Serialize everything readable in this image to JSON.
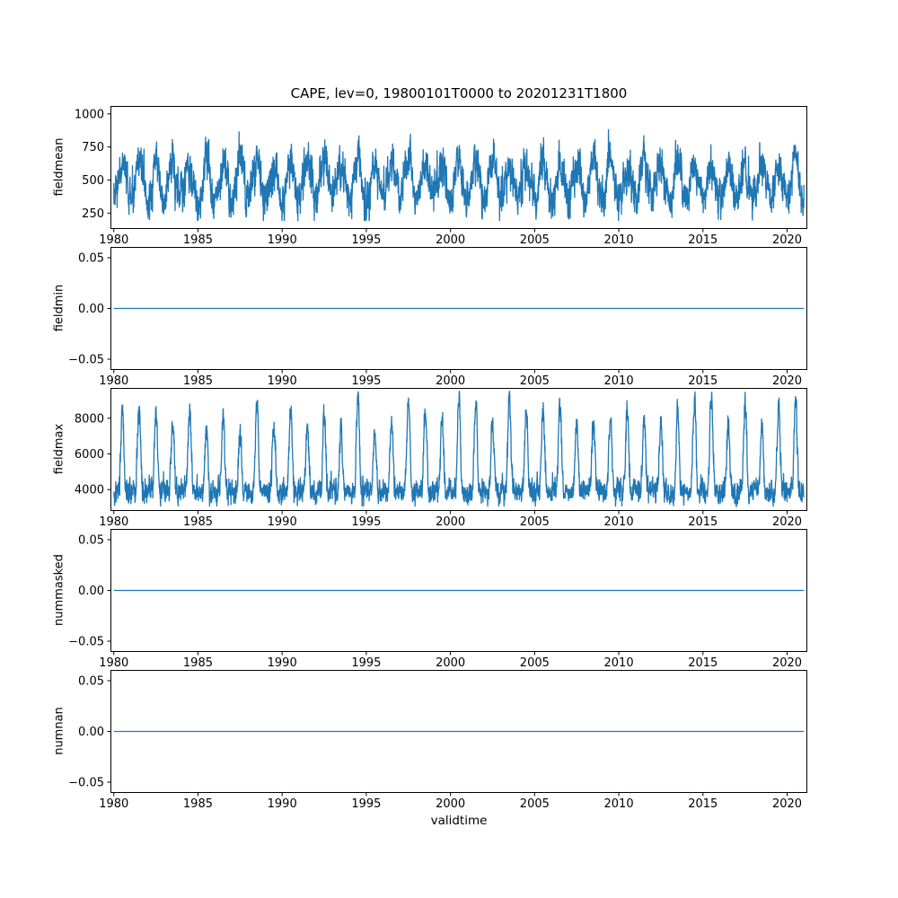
{
  "figure": {
    "title": "CAPE, lev=0, 19800101T0000 to 20201231T1800",
    "xlabel": "validtime",
    "line_color": "#1f77b4",
    "spine_color": "#000000",
    "background": "#ffffff"
  },
  "chart_data": [
    {
      "type": "line",
      "ylabel": "fieldmean",
      "summary": "Dense 6-hourly series with an annual seasonal cycle plus noise; mean about 500, typical range 250-800, occasional peaks near 950, minima near 200.",
      "x_range": [
        1980,
        2021
      ],
      "xlim": [
        1979.8,
        2021.2
      ],
      "ylim": [
        130,
        1060
      ],
      "yticks": [
        250,
        500,
        750,
        1000
      ],
      "ytick_labels": [
        "250",
        "500",
        "750",
        "1000"
      ],
      "xticks": [
        1980,
        1985,
        1990,
        1995,
        2000,
        2005,
        2010,
        2015,
        2020
      ],
      "xtick_labels": [
        "1980",
        "1985",
        "1990",
        "1995",
        "2000",
        "2005",
        "2010",
        "2015",
        "2020"
      ],
      "series": {
        "name": "fieldmean",
        "kind": "seasonal",
        "mean": 495,
        "amp": 150,
        "phase": 0.25,
        "year_min": 0.75,
        "year_max": 1.2,
        "ar": 0.55,
        "noise_sd": 55,
        "jitter": 40,
        "clip_min": 190,
        "clip_max": 985,
        "points": 4000,
        "seed": 7
      }
    },
    {
      "type": "line",
      "ylabel": "fieldmin",
      "summary": "Constant zero line for the whole period.",
      "x_range": [
        1980,
        2021
      ],
      "xlim": [
        1979.8,
        2021.2
      ],
      "ylim": [
        -0.0606,
        0.0606
      ],
      "yticks": [
        0.05,
        0,
        -0.05
      ],
      "ytick_labels": [
        "0.05",
        "0.00",
        "−0.05"
      ],
      "xticks": [
        1980,
        1985,
        1990,
        1995,
        2000,
        2005,
        2010,
        2015,
        2020
      ],
      "xtick_labels": [
        "1980",
        "1985",
        "1990",
        "1995",
        "2000",
        "2005",
        "2010",
        "2015",
        "2020"
      ],
      "series": {
        "name": "fieldmin",
        "kind": "constant",
        "value": 0
      }
    },
    {
      "type": "line",
      "ylabel": "fieldmax",
      "summary": "Dense series with noisy baseline near 3500-4500 and sharp annual peaks reaching 6500-9400.",
      "x_range": [
        1980,
        2021
      ],
      "xlim": [
        1979.8,
        2021.2
      ],
      "ylim": [
        2800,
        9700
      ],
      "yticks": [
        4000,
        6000,
        8000
      ],
      "ytick_labels": [
        "4000",
        "6000",
        "8000"
      ],
      "xticks": [
        1980,
        1985,
        1990,
        1995,
        2000,
        2005,
        2010,
        2015,
        2020
      ],
      "xtick_labels": [
        "1980",
        "1985",
        "1990",
        "1995",
        "2000",
        "2005",
        "2010",
        "2015",
        "2020"
      ],
      "series": {
        "name": "fieldmax",
        "kind": "seasonal_peaks",
        "base": 3900,
        "peak_amp": 4800,
        "peak_power": 3,
        "phase": 0.25,
        "year_min": 0.7,
        "year_max": 1.15,
        "ar": 0.5,
        "noise_sd": 260,
        "jitter": 180,
        "clip_min": 3050,
        "clip_max": 9500,
        "points": 4000,
        "seed": 11
      }
    },
    {
      "type": "line",
      "ylabel": "nummasked",
      "summary": "Constant zero line for the whole period.",
      "x_range": [
        1980,
        2021
      ],
      "xlim": [
        1979.8,
        2021.2
      ],
      "ylim": [
        -0.0606,
        0.0606
      ],
      "yticks": [
        0.05,
        0,
        -0.05
      ],
      "ytick_labels": [
        "0.05",
        "0.00",
        "−0.05"
      ],
      "xticks": [
        1980,
        1985,
        1990,
        1995,
        2000,
        2005,
        2010,
        2015,
        2020
      ],
      "xtick_labels": [
        "1980",
        "1985",
        "1990",
        "1995",
        "2000",
        "2005",
        "2010",
        "2015",
        "2020"
      ],
      "series": {
        "name": "nummasked",
        "kind": "constant",
        "value": 0
      }
    },
    {
      "type": "line",
      "ylabel": "numnan",
      "summary": "Constant zero line for the whole period.",
      "x_range": [
        1980,
        2021
      ],
      "xlim": [
        1979.8,
        2021.2
      ],
      "ylim": [
        -0.0606,
        0.0606
      ],
      "yticks": [
        0.05,
        0,
        -0.05
      ],
      "ytick_labels": [
        "0.05",
        "0.00",
        "−0.05"
      ],
      "xticks": [
        1980,
        1985,
        1990,
        1995,
        2000,
        2005,
        2010,
        2015,
        2020
      ],
      "xtick_labels": [
        "1980",
        "1985",
        "1990",
        "1995",
        "2000",
        "2005",
        "2010",
        "2015",
        "2020"
      ],
      "series": {
        "name": "numnan",
        "kind": "constant",
        "value": 0
      }
    }
  ]
}
